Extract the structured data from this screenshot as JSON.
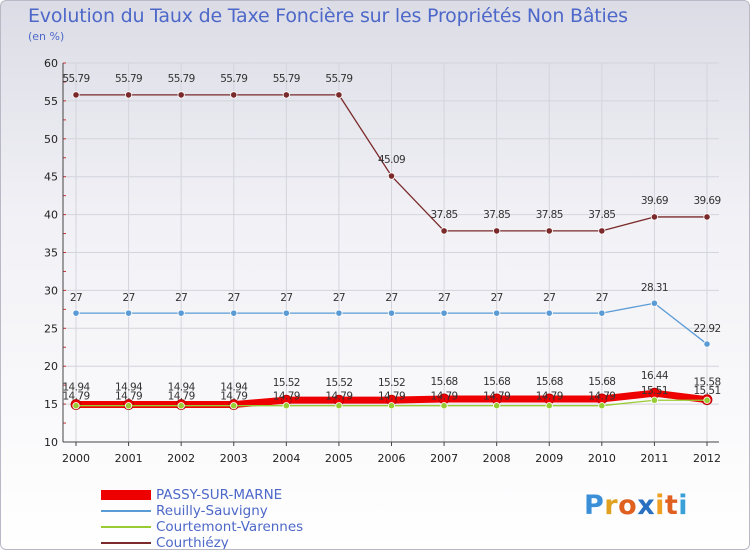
{
  "title": "Evolution du Taux de Taxe Foncière sur les Propriétés Non Bâties",
  "unit_label": "(en %)",
  "logo": {
    "letters": [
      "P",
      "r",
      "o",
      "x",
      "i",
      "t",
      "i"
    ],
    "colors": [
      "#3a8fd8",
      "#e0a020",
      "#e06020",
      "#2a70c0",
      "#f0a020",
      "#e06020",
      "#3aa0d8"
    ]
  },
  "chart_data": {
    "type": "line",
    "title": "Evolution du Taux de Taxe Foncière sur les Propriétés Non Bâties",
    "xlabel": "",
    "ylabel": "(en %)",
    "categories": [
      "2000",
      "2001",
      "2002",
      "2003",
      "2004",
      "2005",
      "2006",
      "2007",
      "2008",
      "2009",
      "2010",
      "2011",
      "2012"
    ],
    "ylim": [
      10,
      60
    ],
    "yticks": [
      10,
      15,
      20,
      25,
      30,
      35,
      40,
      45,
      50,
      55,
      60
    ],
    "ytick_labels": [
      "10",
      "15",
      "20",
      "25",
      "30",
      "35",
      "40",
      "45",
      "50",
      "55",
      "60"
    ],
    "series": [
      {
        "name": "PASSY-SUR-MARNE",
        "color": "#ee0000",
        "values": [
          14.94,
          14.94,
          14.94,
          14.94,
          15.52,
          15.52,
          15.52,
          15.68,
          15.68,
          15.68,
          15.68,
          16.44,
          15.58
        ],
        "labels": [
          "14.94",
          "14.94",
          "14.94",
          "14.94",
          "15.52",
          "15.52",
          "15.52",
          "15.68",
          "15.68",
          "15.68",
          "15.68",
          "16.44",
          "15.58"
        ]
      },
      {
        "name": "Reuilly-Sauvigny",
        "color": "#5b9bd5",
        "values": [
          27,
          27,
          27,
          27,
          27,
          27,
          27,
          27,
          27,
          27,
          27,
          28.31,
          22.92
        ],
        "labels": [
          "27",
          "27",
          "27",
          "27",
          "27",
          "27",
          "27",
          "27",
          "27",
          "27",
          "27",
          "28.31",
          "22.92"
        ]
      },
      {
        "name": "Courtemont-Varennes",
        "color": "#99cc33",
        "values": [
          14.79,
          14.79,
          14.79,
          14.79,
          14.79,
          14.79,
          14.79,
          14.79,
          14.79,
          14.79,
          14.79,
          15.51,
          15.51
        ],
        "labels": [
          "14.79",
          "14.79",
          "14.79",
          "14.79",
          "14.79",
          "14.79",
          "14.79",
          "14.79",
          "14.79",
          "14.79",
          "14.79",
          "15.51",
          "15.51"
        ]
      },
      {
        "name": "Courthiézy",
        "color": "#7a2a2a",
        "values": [
          55.79,
          55.79,
          55.79,
          55.79,
          55.79,
          55.79,
          45.09,
          37.85,
          37.85,
          37.85,
          37.85,
          39.69,
          39.69
        ],
        "labels": [
          "55.79",
          "55.79",
          "55.79",
          "55.79",
          "55.79",
          "55.79",
          "45.09",
          "37.85",
          "37.85",
          "37.85",
          "37.85",
          "39.69",
          "39.69"
        ]
      }
    ]
  }
}
